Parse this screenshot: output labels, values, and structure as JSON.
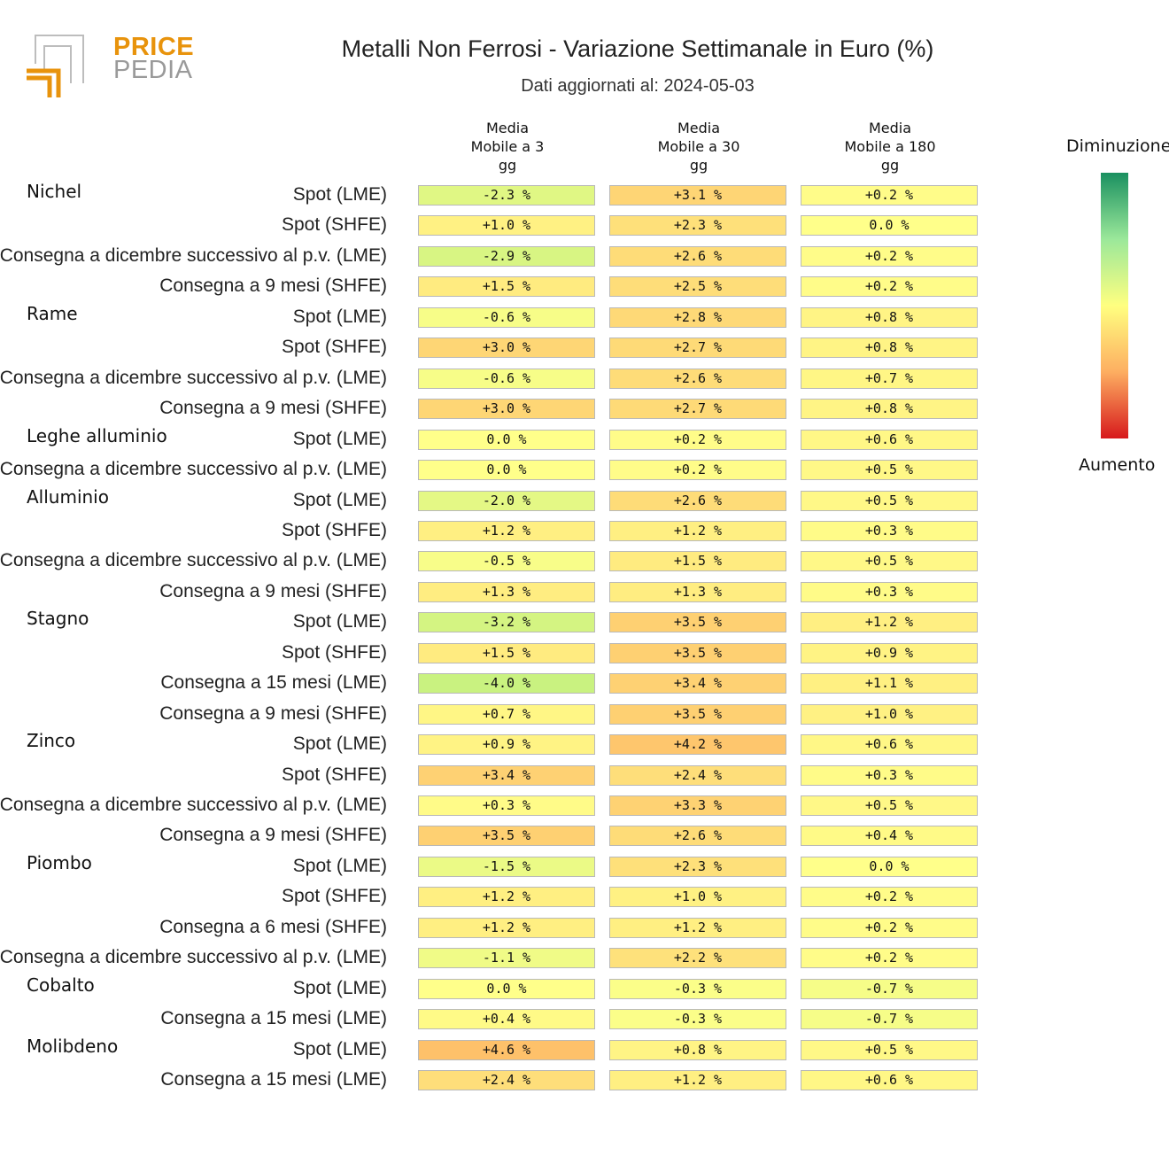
{
  "brand": {
    "word1": "PRICE",
    "word2": "PEDIA"
  },
  "title": "Metalli Non Ferrosi - Variazione Settimanale in Euro (%)",
  "subtitle": "Dati aggiornati al: 2024-05-03",
  "legend": {
    "top": "Diminuzione",
    "bottom": "Aumento"
  },
  "colors": {
    "brand_orange": "#e8930c",
    "brand_gray": "#a8a8a8"
  },
  "chart_data": {
    "type": "heatmap",
    "columns": [
      "Media\nMobile a 3\ngg",
      "Media\nMobile a 30\ngg",
      "Media\nMobile a 180\ngg"
    ],
    "value_format": "signed percent",
    "groups": [
      {
        "name": "Nichel",
        "rows": [
          {
            "label": "Spot (LME)",
            "values": [
              "-2.3 %",
              "+3.1 %",
              "+0.2 %"
            ]
          },
          {
            "label": "Spot (SHFE)",
            "values": [
              "+1.0 %",
              "+2.3 %",
              "0.0 %"
            ]
          },
          {
            "label": "Consegna a dicembre successivo al p.v. (LME)",
            "values": [
              "-2.9 %",
              "+2.6 %",
              "+0.2 %"
            ]
          },
          {
            "label": "Consegna a 9 mesi (SHFE)",
            "values": [
              "+1.5 %",
              "+2.5 %",
              "+0.2 %"
            ]
          }
        ]
      },
      {
        "name": "Rame",
        "rows": [
          {
            "label": "Spot (LME)",
            "values": [
              "-0.6 %",
              "+2.8 %",
              "+0.8 %"
            ]
          },
          {
            "label": "Spot (SHFE)",
            "values": [
              "+3.0 %",
              "+2.7 %",
              "+0.8 %"
            ]
          },
          {
            "label": "Consegna a dicembre successivo al p.v. (LME)",
            "values": [
              "-0.6 %",
              "+2.6 %",
              "+0.7 %"
            ]
          },
          {
            "label": "Consegna a 9 mesi (SHFE)",
            "values": [
              "+3.0 %",
              "+2.7 %",
              "+0.8 %"
            ]
          }
        ]
      },
      {
        "name": "Leghe alluminio",
        "rows": [
          {
            "label": "Spot (LME)",
            "values": [
              "0.0 %",
              "+0.2 %",
              "+0.6 %"
            ]
          },
          {
            "label": "Consegna a dicembre successivo al p.v. (LME)",
            "values": [
              "0.0 %",
              "+0.2 %",
              "+0.5 %"
            ]
          }
        ]
      },
      {
        "name": "Alluminio",
        "rows": [
          {
            "label": "Spot (LME)",
            "values": [
              "-2.0 %",
              "+2.6 %",
              "+0.5 %"
            ]
          },
          {
            "label": "Spot (SHFE)",
            "values": [
              "+1.2 %",
              "+1.2 %",
              "+0.3 %"
            ]
          },
          {
            "label": "Consegna a dicembre successivo al p.v. (LME)",
            "values": [
              "-0.5 %",
              "+1.5 %",
              "+0.5 %"
            ]
          },
          {
            "label": "Consegna a 9 mesi (SHFE)",
            "values": [
              "+1.3 %",
              "+1.3 %",
              "+0.3 %"
            ]
          }
        ]
      },
      {
        "name": "Stagno",
        "rows": [
          {
            "label": "Spot (LME)",
            "values": [
              "-3.2 %",
              "+3.5 %",
              "+1.2 %"
            ]
          },
          {
            "label": "Spot (SHFE)",
            "values": [
              "+1.5 %",
              "+3.5 %",
              "+0.9 %"
            ]
          },
          {
            "label": "Consegna a 15 mesi (LME)",
            "values": [
              "-4.0 %",
              "+3.4 %",
              "+1.1 %"
            ]
          },
          {
            "label": "Consegna a 9 mesi (SHFE)",
            "values": [
              "+0.7 %",
              "+3.5 %",
              "+1.0 %"
            ]
          }
        ]
      },
      {
        "name": "Zinco",
        "rows": [
          {
            "label": "Spot (LME)",
            "values": [
              "+0.9 %",
              "+4.2 %",
              "+0.6 %"
            ]
          },
          {
            "label": "Spot (SHFE)",
            "values": [
              "+3.4 %",
              "+2.4 %",
              "+0.3 %"
            ]
          },
          {
            "label": "Consegna a dicembre successivo al p.v. (LME)",
            "values": [
              "+0.3 %",
              "+3.3 %",
              "+0.5 %"
            ]
          },
          {
            "label": "Consegna a 9 mesi (SHFE)",
            "values": [
              "+3.5 %",
              "+2.6 %",
              "+0.4 %"
            ]
          }
        ]
      },
      {
        "name": "Piombo",
        "rows": [
          {
            "label": "Spot (LME)",
            "values": [
              "-1.5 %",
              "+2.3 %",
              "0.0 %"
            ]
          },
          {
            "label": "Spot (SHFE)",
            "values": [
              "+1.2 %",
              "+1.0 %",
              "+0.2 %"
            ]
          },
          {
            "label": "Consegna a 6 mesi (SHFE)",
            "values": [
              "+1.2 %",
              "+1.2 %",
              "+0.2 %"
            ]
          },
          {
            "label": "Consegna a dicembre successivo al p.v. (LME)",
            "values": [
              "-1.1 %",
              "+2.2 %",
              "+0.2 %"
            ]
          }
        ]
      },
      {
        "name": "Cobalto",
        "rows": [
          {
            "label": "Spot (LME)",
            "values": [
              "0.0 %",
              "-0.3 %",
              "-0.7 %"
            ]
          },
          {
            "label": "Consegna a 15 mesi (LME)",
            "values": [
              "+0.4 %",
              "-0.3 %",
              "-0.7 %"
            ]
          }
        ]
      },
      {
        "name": "Molibdeno",
        "rows": [
          {
            "label": "Spot (LME)",
            "values": [
              "+4.6 %",
              "+0.8 %",
              "+0.5 %"
            ]
          },
          {
            "label": "Consegna a 15 mesi (LME)",
            "values": [
              "+2.4 %",
              "+1.2 %",
              "+0.6 %"
            ]
          }
        ]
      }
    ],
    "color_scale": {
      "low": "#1a9850",
      "mid": "#ffff80",
      "high": "#d7191c",
      "legend_top": "Diminuzione",
      "legend_bottom": "Aumento"
    }
  }
}
